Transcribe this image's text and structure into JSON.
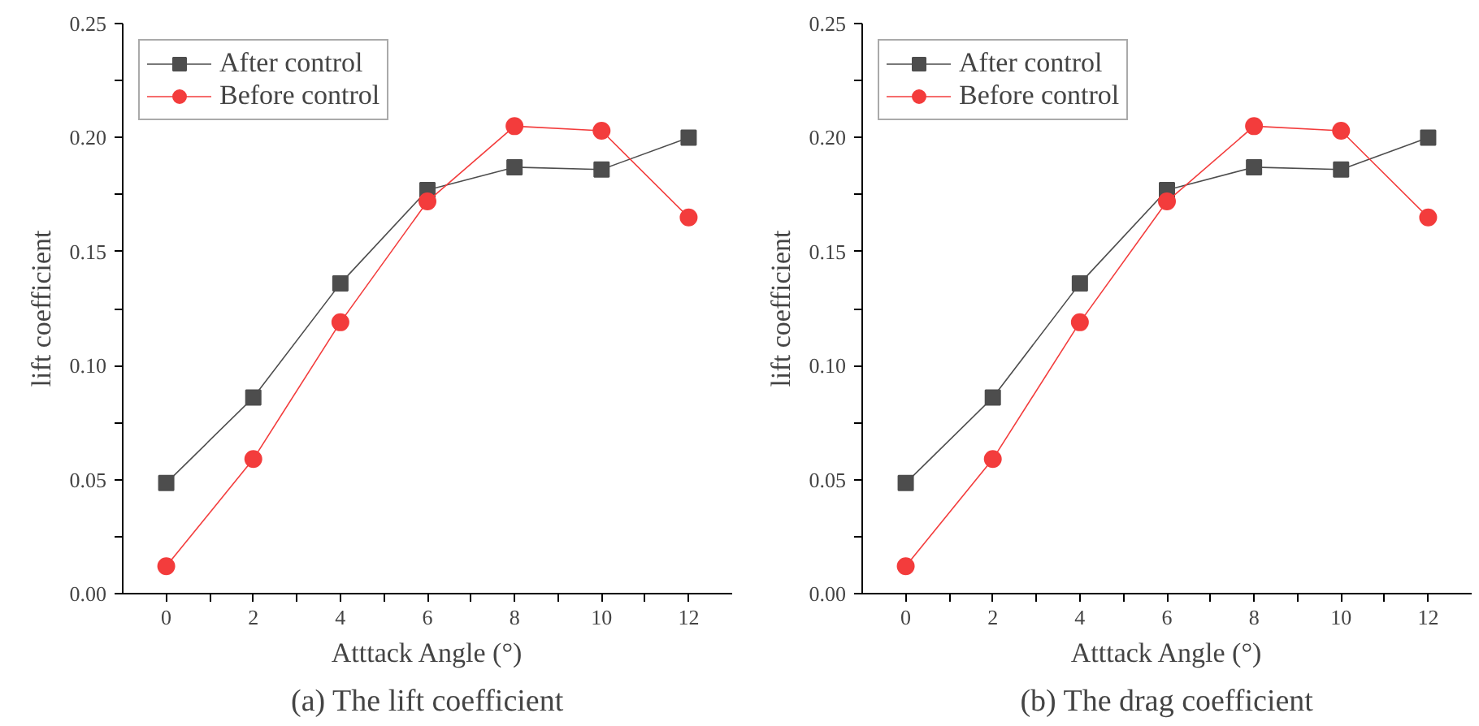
{
  "chart_data": [
    {
      "type": "line",
      "title": "(a) The lift coefficient",
      "xlabel": "Atttack Angle (°)",
      "ylabel": "lift coefficient",
      "x": [
        0,
        2,
        4,
        6,
        8,
        10,
        12
      ],
      "xlim": [
        -1,
        13
      ],
      "xticks": [
        0,
        {
          "value": 1,
          "label": null
        },
        2,
        {
          "value": 3,
          "label": null
        },
        4,
        {
          "value": 5,
          "label": null
        },
        6,
        {
          "value": 7,
          "label": null
        },
        8,
        {
          "value": 9,
          "label": null
        },
        10,
        {
          "value": 11,
          "label": null
        },
        12
      ],
      "ylim": [
        0,
        0.25
      ],
      "yticks": [
        {
          "value": 0,
          "label": "0.00"
        },
        {
          "value": 0.025,
          "label": null
        },
        {
          "value": 0.05,
          "label": "0.05"
        },
        {
          "value": 0.075,
          "label": null
        },
        {
          "value": 0.1,
          "label": "0.10"
        },
        {
          "value": 0.125,
          "label": null
        },
        {
          "value": 0.15,
          "label": "0.15"
        },
        {
          "value": 0.175,
          "label": null
        },
        {
          "value": 0.2,
          "label": "0.20"
        },
        {
          "value": 0.225,
          "label": null
        },
        {
          "value": 0.25,
          "label": "0.25"
        }
      ],
      "series": [
        {
          "name": "After control",
          "color": "#4d4d4d",
          "marker": "square",
          "values": [
            0.0485,
            0.086,
            0.136,
            0.177,
            0.187,
            0.186,
            0.2
          ]
        },
        {
          "name": "Before control",
          "color": "#f33c3c",
          "marker": "circle",
          "values": [
            0.012,
            0.059,
            0.119,
            0.172,
            0.205,
            0.203,
            0.165
          ]
        }
      ],
      "legend": "top left",
      "grid": false
    },
    {
      "type": "line",
      "title": "(b) The drag coefficient",
      "xlabel": "Atttack Angle (°)",
      "ylabel": "lift coefficient",
      "x": [
        0,
        2,
        4,
        6,
        8,
        10,
        12
      ],
      "xlim": [
        -1,
        13
      ],
      "xticks": [
        0,
        {
          "value": 1,
          "label": null
        },
        2,
        {
          "value": 3,
          "label": null
        },
        4,
        {
          "value": 5,
          "label": null
        },
        6,
        {
          "value": 7,
          "label": null
        },
        8,
        {
          "value": 9,
          "label": null
        },
        10,
        {
          "value": 11,
          "label": null
        },
        12
      ],
      "ylim": [
        0,
        0.25
      ],
      "yticks": [
        {
          "value": 0,
          "label": "0.00"
        },
        {
          "value": 0.025,
          "label": null
        },
        {
          "value": 0.05,
          "label": "0.05"
        },
        {
          "value": 0.075,
          "label": null
        },
        {
          "value": 0.1,
          "label": "0.10"
        },
        {
          "value": 0.125,
          "label": null
        },
        {
          "value": 0.15,
          "label": "0.15"
        },
        {
          "value": 0.175,
          "label": null
        },
        {
          "value": 0.2,
          "label": "0.20"
        },
        {
          "value": 0.225,
          "label": null
        },
        {
          "value": 0.25,
          "label": "0.25"
        }
      ],
      "series": [
        {
          "name": "After control",
          "color": "#4d4d4d",
          "marker": "square",
          "values": [
            0.0485,
            0.086,
            0.136,
            0.177,
            0.187,
            0.186,
            0.2
          ]
        },
        {
          "name": "Before control",
          "color": "#f33c3c",
          "marker": "circle",
          "values": [
            0.012,
            0.059,
            0.119,
            0.172,
            0.205,
            0.203,
            0.165
          ]
        }
      ],
      "legend": "top left",
      "grid": false
    }
  ]
}
